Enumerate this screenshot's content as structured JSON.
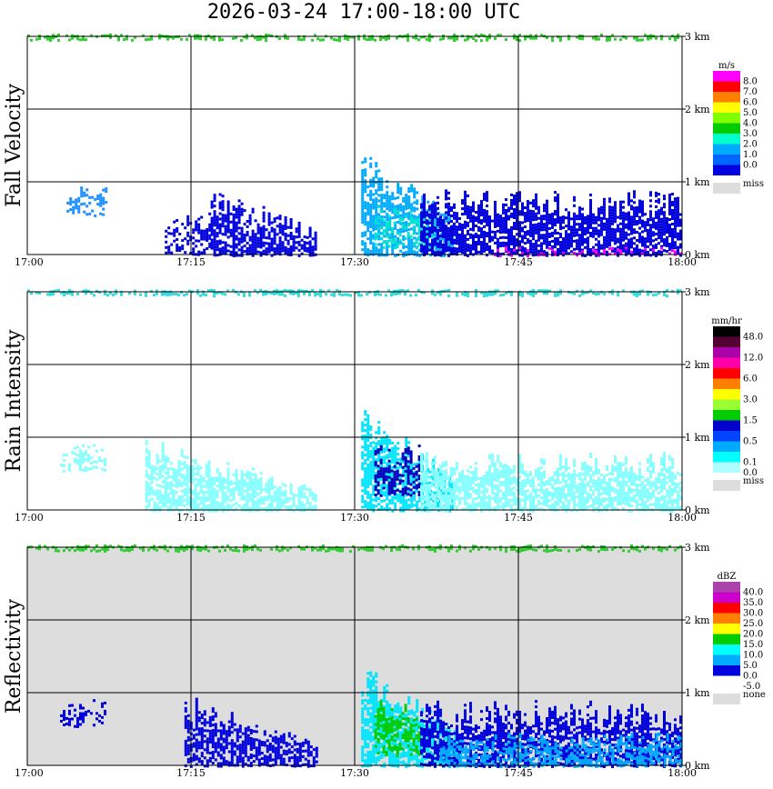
{
  "title": "2026-03-24   17:00-18:00 UTC",
  "chart_data": [
    {
      "type": "heatmap",
      "title": "Fall Velocity",
      "ylabel": "Fall Velocity",
      "x_ticks": [
        "17:00",
        "17:15",
        "17:30",
        "17:45",
        "18:00"
      ],
      "y_ticks": [
        "0 km",
        "1 km",
        "2 km",
        "3 km"
      ],
      "ylim_km": [
        0,
        3
      ],
      "legend": {
        "unit": "m/s",
        "levels": [
          {
            "label": "8.0",
            "color": "#ff00ff"
          },
          {
            "label": "7.0",
            "color": "#ff0000"
          },
          {
            "label": "6.0",
            "color": "#ff7f00"
          },
          {
            "label": "5.0",
            "color": "#ffff00"
          },
          {
            "label": "4.0",
            "color": "#7fff00"
          },
          {
            "label": "3.0",
            "color": "#00cc00"
          },
          {
            "label": "2.0",
            "color": "#00ffcc"
          },
          {
            "label": "1.0",
            "color": "#00aaff"
          },
          {
            "label": "0.0",
            "color": "#0066ff"
          },
          {
            "label": "",
            "color": "#0000e0"
          }
        ],
        "miss_label": "miss",
        "miss_color": "#dddddd"
      },
      "background": "#ffffff",
      "regions": [
        {
          "t0": 0.0,
          "t1": 1.0,
          "h0": 2.96,
          "h1": 3.04,
          "color": "#33cc33",
          "density": 0.5
        },
        {
          "t0": 0.06,
          "t1": 0.12,
          "h0": 0.55,
          "h1": 0.95,
          "color": "#1e90ff",
          "density": 0.35
        },
        {
          "t0": 0.21,
          "t1": 0.28,
          "h0": 0.0,
          "h1": 0.6,
          "color": "#0000dd",
          "density": 0.45
        },
        {
          "t0": 0.28,
          "t1": 0.44,
          "h0": 0.0,
          "h1": 1.0,
          "color": "#0000dd",
          "density": 0.7,
          "slope": true
        },
        {
          "t0": 0.51,
          "t1": 0.65,
          "h0": 0.0,
          "h1": 1.5,
          "color": "#00aaff",
          "density": 0.7,
          "slope": true
        },
        {
          "t0": 0.53,
          "t1": 0.62,
          "h0": 0.1,
          "h1": 0.7,
          "color": "#00e5d0",
          "density": 0.45
        },
        {
          "t0": 0.6,
          "t1": 1.0,
          "h0": 0.0,
          "h1": 0.9,
          "color": "#0000dd",
          "density": 0.75
        },
        {
          "t0": 0.7,
          "t1": 1.0,
          "h0": 0.0,
          "h1": 0.12,
          "color": "#ff00ff",
          "density": 0.25
        }
      ]
    },
    {
      "type": "heatmap",
      "title": "Rain Intensity",
      "ylabel": "Rain Intensity",
      "x_ticks": [
        "17:00",
        "17:15",
        "17:30",
        "17:45",
        "18:00"
      ],
      "y_ticks": [
        "0 km",
        "1 km",
        "2 km",
        "3 km"
      ],
      "ylim_km": [
        0,
        3
      ],
      "legend": {
        "unit": "mm/hr",
        "levels": [
          {
            "label": "48.0",
            "color": "#000000"
          },
          {
            "label": "",
            "color": "#550033"
          },
          {
            "label": "12.0",
            "color": "#aa00aa"
          },
          {
            "label": "",
            "color": "#ff00aa"
          },
          {
            "label": "6.0",
            "color": "#ff0000"
          },
          {
            "label": "",
            "color": "#ff7f00"
          },
          {
            "label": "3.0",
            "color": "#ffff00"
          },
          {
            "label": "",
            "color": "#99ff33"
          },
          {
            "label": "1.5",
            "color": "#00cc00"
          },
          {
            "label": "",
            "color": "#0000cc"
          },
          {
            "label": "0.5",
            "color": "#0044ff"
          },
          {
            "label": "",
            "color": "#00aaff"
          },
          {
            "label": "0.1",
            "color": "#00ffff"
          },
          {
            "label": "0.0",
            "color": "#b0ffff"
          }
        ],
        "miss_label": "miss",
        "miss_color": "#dddddd"
      },
      "background": "#ffffff",
      "regions": [
        {
          "t0": 0.0,
          "t1": 1.0,
          "h0": 2.96,
          "h1": 3.04,
          "color": "#33dddd",
          "density": 0.5
        },
        {
          "t0": 0.05,
          "t1": 0.12,
          "h0": 0.55,
          "h1": 0.95,
          "color": "#88ffff",
          "density": 0.3
        },
        {
          "t0": 0.18,
          "t1": 0.44,
          "h0": 0.0,
          "h1": 1.0,
          "color": "#88ffff",
          "density": 0.75,
          "slope": true
        },
        {
          "t0": 0.51,
          "t1": 0.65,
          "h0": 0.0,
          "h1": 1.5,
          "color": "#00e5ff",
          "density": 0.7,
          "slope": true
        },
        {
          "t0": 0.53,
          "t1": 0.6,
          "h0": 0.2,
          "h1": 0.9,
          "color": "#0000bb",
          "density": 0.55
        },
        {
          "t0": 0.6,
          "t1": 1.0,
          "h0": 0.0,
          "h1": 0.8,
          "color": "#88ffff",
          "density": 0.75
        }
      ]
    },
    {
      "type": "heatmap",
      "title": "Reflectivity",
      "ylabel": "Reflectivity",
      "x_ticks": [
        "17:00",
        "17:15",
        "17:30",
        "17:45",
        "18:00"
      ],
      "y_ticks": [
        "0 km",
        "1 km",
        "2 km",
        "3 km"
      ],
      "ylim_km": [
        0,
        3
      ],
      "legend": {
        "unit": "dBZ",
        "levels": [
          {
            "label": "40.0",
            "color": "#aa44aa"
          },
          {
            "label": "35.0",
            "color": "#cc00cc"
          },
          {
            "label": "30.0",
            "color": "#ff0000"
          },
          {
            "label": "25.0",
            "color": "#ff7f00"
          },
          {
            "label": "20.0",
            "color": "#ffff00"
          },
          {
            "label": "15.0",
            "color": "#00cc00"
          },
          {
            "label": "10.0",
            "color": "#00ffff"
          },
          {
            "label": "5.0",
            "color": "#00aaff"
          },
          {
            "label": "0.0",
            "color": "#0000dd"
          },
          {
            "label": "-5.0",
            "color": "#ffffff"
          }
        ],
        "miss_label": "none",
        "miss_color": "#dddddd"
      },
      "background": "#dddddd",
      "regions": [
        {
          "t0": 0.0,
          "t1": 1.0,
          "h0": 2.96,
          "h1": 3.04,
          "color": "#33cc33",
          "density": 0.5
        },
        {
          "t0": 0.05,
          "t1": 0.12,
          "h0": 0.55,
          "h1": 0.95,
          "color": "#0000dd",
          "density": 0.3
        },
        {
          "t0": 0.24,
          "t1": 0.44,
          "h0": 0.0,
          "h1": 1.0,
          "color": "#0000dd",
          "density": 0.65,
          "slope": true
        },
        {
          "t0": 0.51,
          "t1": 0.66,
          "h0": 0.0,
          "h1": 1.5,
          "color": "#00e5ff",
          "density": 0.75,
          "slope": true
        },
        {
          "t0": 0.53,
          "t1": 0.6,
          "h0": 0.15,
          "h1": 0.9,
          "color": "#00cc00",
          "density": 0.55
        },
        {
          "t0": 0.6,
          "t1": 1.0,
          "h0": 0.0,
          "h1": 0.9,
          "color": "#0000dd",
          "density": 0.7
        },
        {
          "t0": 0.63,
          "t1": 1.0,
          "h0": 0.0,
          "h1": 0.45,
          "color": "#00aaff",
          "density": 0.55
        }
      ]
    }
  ]
}
